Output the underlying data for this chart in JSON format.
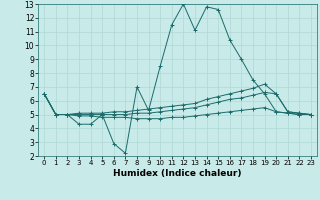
{
  "xlabel": "Humidex (Indice chaleur)",
  "ylabel": "",
  "bg_color": "#c8eae8",
  "grid_color": "#b0d8d4",
  "line_color": "#1a6b6b",
  "xlim": [
    -0.5,
    23.5
  ],
  "ylim": [
    2,
    13
  ],
  "xticks": [
    0,
    1,
    2,
    3,
    4,
    5,
    6,
    7,
    8,
    9,
    10,
    11,
    12,
    13,
    14,
    15,
    16,
    17,
    18,
    19,
    20,
    21,
    22,
    23
  ],
  "yticks": [
    2,
    3,
    4,
    5,
    6,
    7,
    8,
    9,
    10,
    11,
    12,
    13
  ],
  "series": {
    "line1": [
      6.5,
      5.0,
      5.0,
      4.3,
      4.3,
      5.0,
      2.9,
      2.2,
      7.0,
      5.3,
      8.5,
      11.5,
      13.0,
      11.1,
      12.8,
      12.6,
      10.4,
      9.0,
      7.5,
      6.5,
      5.2,
      5.1,
      5.0,
      5.0
    ],
    "line2": [
      6.5,
      5.0,
      5.0,
      5.1,
      5.1,
      5.1,
      5.2,
      5.2,
      5.3,
      5.4,
      5.5,
      5.6,
      5.7,
      5.8,
      6.1,
      6.3,
      6.5,
      6.7,
      6.9,
      7.2,
      6.5,
      5.2,
      5.1,
      5.0
    ],
    "line3": [
      6.5,
      5.0,
      5.0,
      5.0,
      5.0,
      5.0,
      5.0,
      5.0,
      5.1,
      5.1,
      5.2,
      5.3,
      5.4,
      5.5,
      5.7,
      5.9,
      6.1,
      6.2,
      6.4,
      6.6,
      6.5,
      5.2,
      5.1,
      5.0
    ],
    "line4": [
      6.5,
      5.0,
      5.0,
      4.9,
      4.9,
      4.8,
      4.8,
      4.8,
      4.7,
      4.7,
      4.7,
      4.8,
      4.8,
      4.9,
      5.0,
      5.1,
      5.2,
      5.3,
      5.4,
      5.5,
      5.2,
      5.1,
      5.0,
      5.0
    ]
  }
}
